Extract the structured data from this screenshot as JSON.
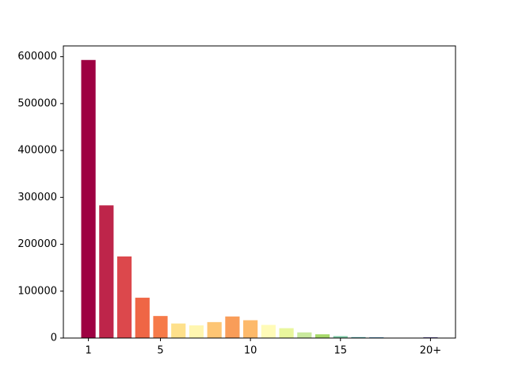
{
  "chart_data": {
    "type": "bar",
    "categories": [
      "1",
      null,
      null,
      null,
      "5",
      null,
      null,
      null,
      null,
      "10",
      null,
      null,
      null,
      null,
      "15",
      null,
      null,
      null,
      null,
      "20+"
    ],
    "values": [
      593000,
      283000,
      174000,
      86000,
      47000,
      31000,
      27000,
      34000,
      46000,
      38000,
      28000,
      21000,
      12000,
      8000,
      4000,
      2000,
      1500,
      0,
      0,
      1500
    ],
    "colors": [
      "#9e0142",
      "#be254a",
      "#dc484c",
      "#ef6645",
      "#f67a49",
      "#fee08b",
      "#fff6b0",
      "#fdc574",
      "#f99d59",
      "#fdb96a",
      "#fffbb8",
      "#e9f69d",
      "#c9e99e",
      "#a6d96a",
      "#7ccba5",
      "#54aead",
      "#3288bd",
      "#4a6cb0",
      "#5e4fa2",
      "#3b2c8c"
    ],
    "ylim": [
      0,
      623000
    ],
    "yticks": [
      0,
      100000,
      200000,
      300000,
      400000,
      500000,
      600000
    ]
  }
}
